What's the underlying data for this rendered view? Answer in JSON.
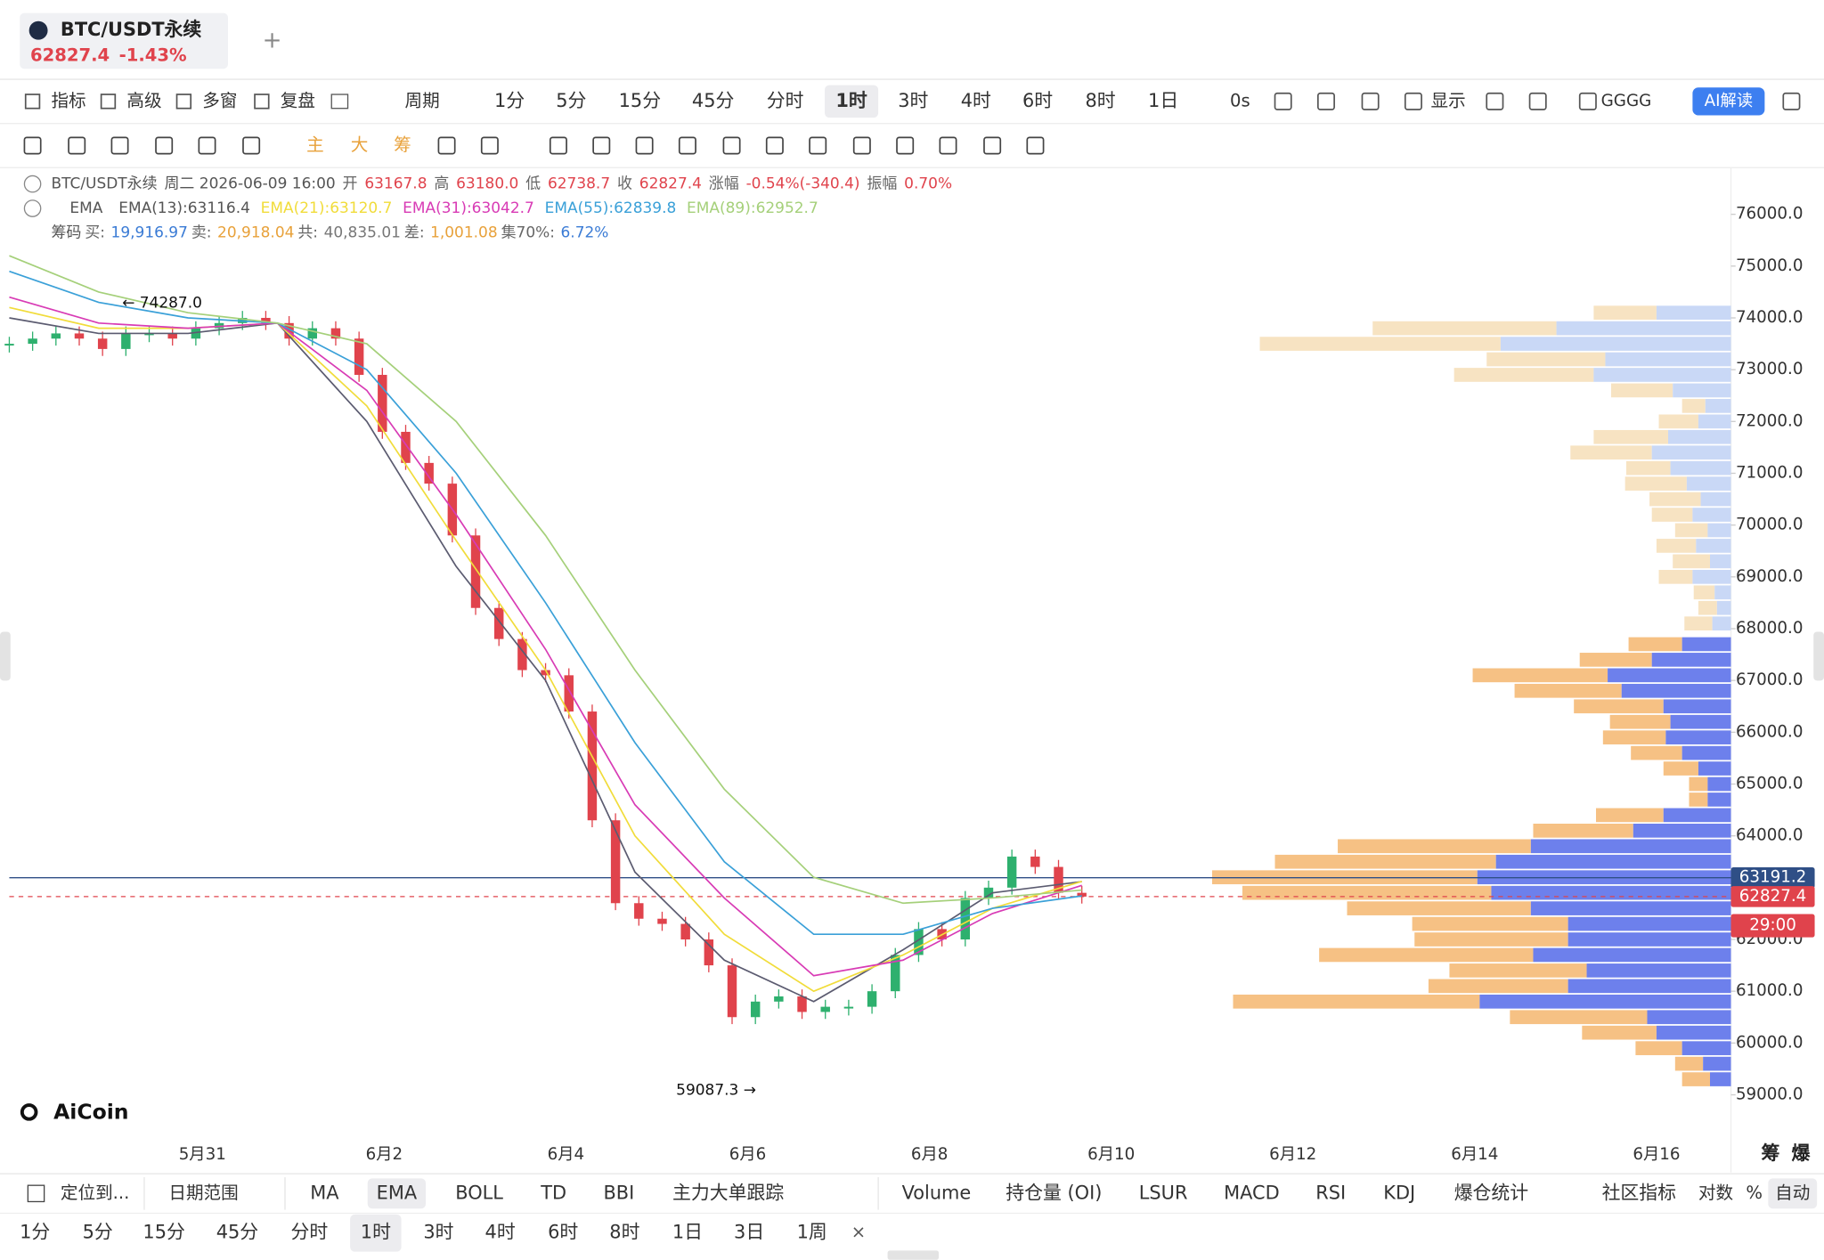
{
  "tab": {
    "symbol": "BTC/USDT永续",
    "price": "62827.4",
    "change": "-1.43%"
  },
  "toolbar": {
    "tools": [
      "指标",
      "高级",
      "多窗",
      "复盘"
    ],
    "period": "周期",
    "intervals": [
      "1分",
      "5分",
      "15分",
      "45分",
      "分时",
      "1时",
      "3时",
      "4时",
      "6时",
      "8时",
      "1日"
    ],
    "active": 5,
    "refresh": "0s",
    "display": "显示",
    "account": "GGGG",
    "ai": "AI解读"
  },
  "drawing_toolbar": {
    "labels": [
      "主",
      "大",
      "筹"
    ]
  },
  "info": {
    "symbol": "BTC/USDT永续",
    "time": "周二 2026-06-09 16:00",
    "fields": [
      [
        "开",
        "63167.8"
      ],
      [
        "高",
        "63180.0"
      ],
      [
        "低",
        "62738.7"
      ],
      [
        "收",
        "62827.4"
      ],
      [
        "涨幅",
        "-0.54%(-340.4)"
      ],
      [
        "振幅",
        "0.70%"
      ]
    ]
  },
  "chips": {
    "label": "筹码",
    "fields": [
      [
        "买:",
        "19,916.97"
      ],
      [
        "卖:",
        "20,918.04"
      ],
      [
        "共:",
        "40,835.01"
      ],
      [
        "差:",
        "1,001.08"
      ],
      [
        "集70%:",
        "6.72%"
      ]
    ]
  },
  "chart_data": {
    "type": "candlestick",
    "indicator": "EMA",
    "close": [
      73500,
      73600,
      73700,
      73600,
      73400,
      73700,
      73700,
      73600,
      73800,
      73900,
      74000,
      73900,
      73600,
      73800,
      73600,
      72900,
      71800,
      71200,
      70800,
      69800,
      68400,
      67800,
      67200,
      67100,
      66400,
      64300,
      62700,
      62400,
      62300,
      62000,
      61500,
      60500,
      60800,
      60900,
      60600,
      60700,
      60700,
      61000,
      61700,
      62200,
      62000,
      62800,
      63000,
      63600,
      63400,
      62900,
      62827.4
    ],
    "series": [
      {
        "name": "EMA(13):63116.4",
        "color": "#5b5b70",
        "values": [
          74000,
          73700,
          73700,
          73900,
          72000,
          69200,
          67000,
          63300,
          61600,
          60800,
          61800,
          62900,
          63116.4
        ]
      },
      {
        "name": "EMA(21):63120.7",
        "color": "#f1dc3a",
        "values": [
          74200,
          73800,
          73800,
          73900,
          72300,
          69700,
          67200,
          64000,
          62100,
          61000,
          61700,
          62600,
          63120.7
        ]
      },
      {
        "name": "EMA(31):63042.7",
        "color": "#d83bb5",
        "values": [
          74400,
          73900,
          73800,
          73900,
          72600,
          70200,
          67600,
          64600,
          62800,
          61300,
          61600,
          62500,
          63042.7
        ]
      },
      {
        "name": "EMA(55):62839.8",
        "color": "#3aa0d8",
        "values": [
          74900,
          74300,
          74000,
          73900,
          73000,
          71000,
          68500,
          65800,
          63500,
          62100,
          62100,
          62600,
          62839.8
        ]
      },
      {
        "name": "EMA(89):62952.7",
        "color": "#a5d07a",
        "values": [
          75200,
          74500,
          74100,
          73900,
          73500,
          72000,
          69800,
          67200,
          64900,
          63200,
          62700,
          62800,
          62952.7
        ]
      }
    ],
    "ylim": [
      58240,
      76810
    ],
    "yticks": [
      {
        "value": 76000,
        "label": "76000.0"
      },
      {
        "value": 75000,
        "label": "75000.0"
      },
      {
        "value": 74000,
        "label": "74000.0"
      },
      {
        "value": 73000,
        "label": "73000.0"
      },
      {
        "value": 72000,
        "label": "72000.0"
      },
      {
        "value": 71000,
        "label": "71000.0"
      },
      {
        "value": 70000,
        "label": "70000.0"
      },
      {
        "value": 69000,
        "label": "69000.0"
      },
      {
        "value": 68000,
        "label": "68000.0"
      },
      {
        "value": 67000,
        "label": "67000.0"
      },
      {
        "value": 66000,
        "label": "66000.0"
      },
      {
        "value": 65000,
        "label": "65000.0"
      },
      {
        "value": 64000,
        "label": "64000.0"
      },
      {
        "value": 63000,
        "label": "63000.0"
      },
      {
        "value": 62000,
        "label": "62000.0"
      },
      {
        "value": 61000,
        "label": "61000.0"
      },
      {
        "value": 60000,
        "label": "60000.0"
      },
      {
        "value": 59000,
        "label": "59000.0"
      }
    ],
    "xticks": [
      "5月31",
      "6月2",
      "6月4",
      "6月6",
      "6月8",
      "6月10",
      "6月12",
      "6月14",
      "6月16"
    ],
    "annotations": [
      {
        "text": "← 74287.0",
        "value": 74287.0
      },
      {
        "text": "59087.3 →",
        "value": 59087.3
      }
    ],
    "price_lines": [
      {
        "label": "63191.2",
        "value": 63191.2,
        "color": "#2f4f86"
      },
      {
        "label": "62827.4",
        "value": 62827.4,
        "color": "#e0434c"
      }
    ],
    "countdown": "29:00",
    "volume_profile": {
      "upper": {
        "prices": [
          74100,
          73800,
          73500,
          73200,
          72900,
          72600,
          72300,
          72000,
          71700,
          71400,
          71100,
          70800,
          70500,
          70200,
          69900,
          69600,
          69300,
          69000,
          68700,
          68400,
          68100
        ],
        "buy": [
          64,
          150,
          198,
          108,
          118,
          50,
          22,
          28,
          54,
          68,
          52,
          38,
          26,
          33,
          20,
          30,
          18,
          33,
          14,
          12,
          16
        ],
        "sell": [
          54,
          158,
          207,
          102,
          120,
          53,
          20,
          34,
          64,
          70,
          38,
          53,
          44,
          35,
          28,
          34,
          32,
          29,
          18,
          16,
          24
        ]
      },
      "lower": {
        "prices": [
          67700,
          67400,
          67100,
          66800,
          66500,
          66200,
          65900,
          65600,
          65300,
          65000,
          64700,
          64400,
          64100,
          63800,
          63500,
          63200,
          62900,
          62600,
          62300,
          62000,
          61700,
          61400,
          61100,
          60800,
          60500,
          60200,
          59900,
          59600,
          59300
        ],
        "buy": [
          42,
          68,
          106,
          94,
          58,
          52,
          56,
          42,
          28,
          20,
          20,
          58,
          84,
          172,
          202,
          218,
          206,
          172,
          140,
          140,
          170,
          124,
          140,
          216,
          72,
          64,
          42,
          24,
          18
        ],
        "sell": [
          46,
          62,
          116,
          92,
          77,
          52,
          54,
          44,
          30,
          16,
          16,
          58,
          86,
          166,
          190,
          228,
          214,
          158,
          134,
          132,
          184,
          118,
          120,
          212,
          118,
          64,
          40,
          24,
          24
        ]
      }
    },
    "profile_labels": [
      "筹",
      "爆"
    ]
  },
  "bottom": {
    "locate": "定位到...",
    "range": "日期范围",
    "main_indicators": [
      "MA",
      "EMA",
      "BOLL",
      "TD",
      "BBI",
      "主力大单跟踪"
    ],
    "sub_indicators": [
      "Volume",
      "持仓量 (OI)",
      "LSUR",
      "MACD",
      "RSI",
      "KDJ",
      "爆仓统计"
    ],
    "community": "社区指标",
    "log": "对数",
    "percent": "%",
    "auto": "自动",
    "intervals": [
      "1分",
      "5分",
      "15分",
      "45分",
      "分时",
      "1时",
      "3时",
      "4时",
      "6时",
      "8时",
      "1日",
      "3日",
      "1周"
    ],
    "close": "×"
  },
  "logo": "AiCoin"
}
